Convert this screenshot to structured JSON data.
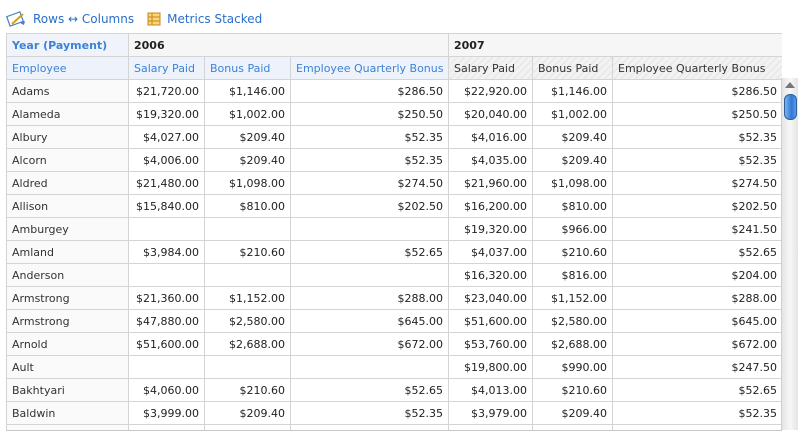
{
  "toolbar": {
    "swap_label": "Rows ↔ Columns",
    "metrics_label": "Metrics Stacked"
  },
  "headers": {
    "year_axis": "Year (Payment)",
    "year_2006": "2006",
    "year_2007": "2007",
    "employee_axis": "Employee",
    "columns_2006": [
      "Salary Paid",
      "Bonus Paid",
      "Employee Quarterly Bonus"
    ],
    "columns_2007": [
      "Salary Paid",
      "Bonus Paid",
      "Employee Quarterly Bonus"
    ]
  },
  "rows": [
    {
      "name": "Adams",
      "s06": "$21,720.00",
      "b06": "$1,146.00",
      "q06": "$286.50",
      "s07": "$22,920.00",
      "b07": "$1,146.00",
      "q07": "$286.50"
    },
    {
      "name": "Alameda",
      "s06": "$19,320.00",
      "b06": "$1,002.00",
      "q06": "$250.50",
      "s07": "$20,040.00",
      "b07": "$1,002.00",
      "q07": "$250.50"
    },
    {
      "name": "Albury",
      "s06": "$4,027.00",
      "b06": "$209.40",
      "q06": "$52.35",
      "s07": "$4,016.00",
      "b07": "$209.40",
      "q07": "$52.35"
    },
    {
      "name": "Alcorn",
      "s06": "$4,006.00",
      "b06": "$209.40",
      "q06": "$52.35",
      "s07": "$4,035.00",
      "b07": "$209.40",
      "q07": "$52.35"
    },
    {
      "name": "Aldred",
      "s06": "$21,480.00",
      "b06": "$1,098.00",
      "q06": "$274.50",
      "s07": "$21,960.00",
      "b07": "$1,098.00",
      "q07": "$274.50"
    },
    {
      "name": "Allison",
      "s06": "$15,840.00",
      "b06": "$810.00",
      "q06": "$202.50",
      "s07": "$16,200.00",
      "b07": "$810.00",
      "q07": "$202.50"
    },
    {
      "name": "Amburgey",
      "s06": "",
      "b06": "",
      "q06": "",
      "s07": "$19,320.00",
      "b07": "$966.00",
      "q07": "$241.50"
    },
    {
      "name": "Amland",
      "s06": "$3,984.00",
      "b06": "$210.60",
      "q06": "$52.65",
      "s07": "$4,037.00",
      "b07": "$210.60",
      "q07": "$52.65"
    },
    {
      "name": "Anderson",
      "s06": "",
      "b06": "",
      "q06": "",
      "s07": "$16,320.00",
      "b07": "$816.00",
      "q07": "$204.00"
    },
    {
      "name": "Armstrong",
      "s06": "$21,360.00",
      "b06": "$1,152.00",
      "q06": "$288.00",
      "s07": "$23,040.00",
      "b07": "$1,152.00",
      "q07": "$288.00"
    },
    {
      "name": "Armstrong",
      "s06": "$47,880.00",
      "b06": "$2,580.00",
      "q06": "$645.00",
      "s07": "$51,600.00",
      "b07": "$2,580.00",
      "q07": "$645.00"
    },
    {
      "name": "Arnold",
      "s06": "$51,600.00",
      "b06": "$2,688.00",
      "q06": "$672.00",
      "s07": "$53,760.00",
      "b07": "$2,688.00",
      "q07": "$672.00"
    },
    {
      "name": "Ault",
      "s06": "",
      "b06": "",
      "q06": "",
      "s07": "$19,800.00",
      "b07": "$990.00",
      "q07": "$247.50"
    },
    {
      "name": "Bakhtyari",
      "s06": "$4,060.00",
      "b06": "$210.60",
      "q06": "$52.65",
      "s07": "$4,013.00",
      "b07": "$210.60",
      "q07": "$52.65"
    },
    {
      "name": "Baldwin",
      "s06": "$3,999.00",
      "b06": "$209.40",
      "q06": "$52.35",
      "s07": "$3,979.00",
      "b07": "$209.40",
      "q07": "$52.35"
    },
    {
      "name": "",
      "s06": "",
      "b06": "",
      "q06": "",
      "s07": "",
      "b07": "",
      "q07": ""
    }
  ]
}
